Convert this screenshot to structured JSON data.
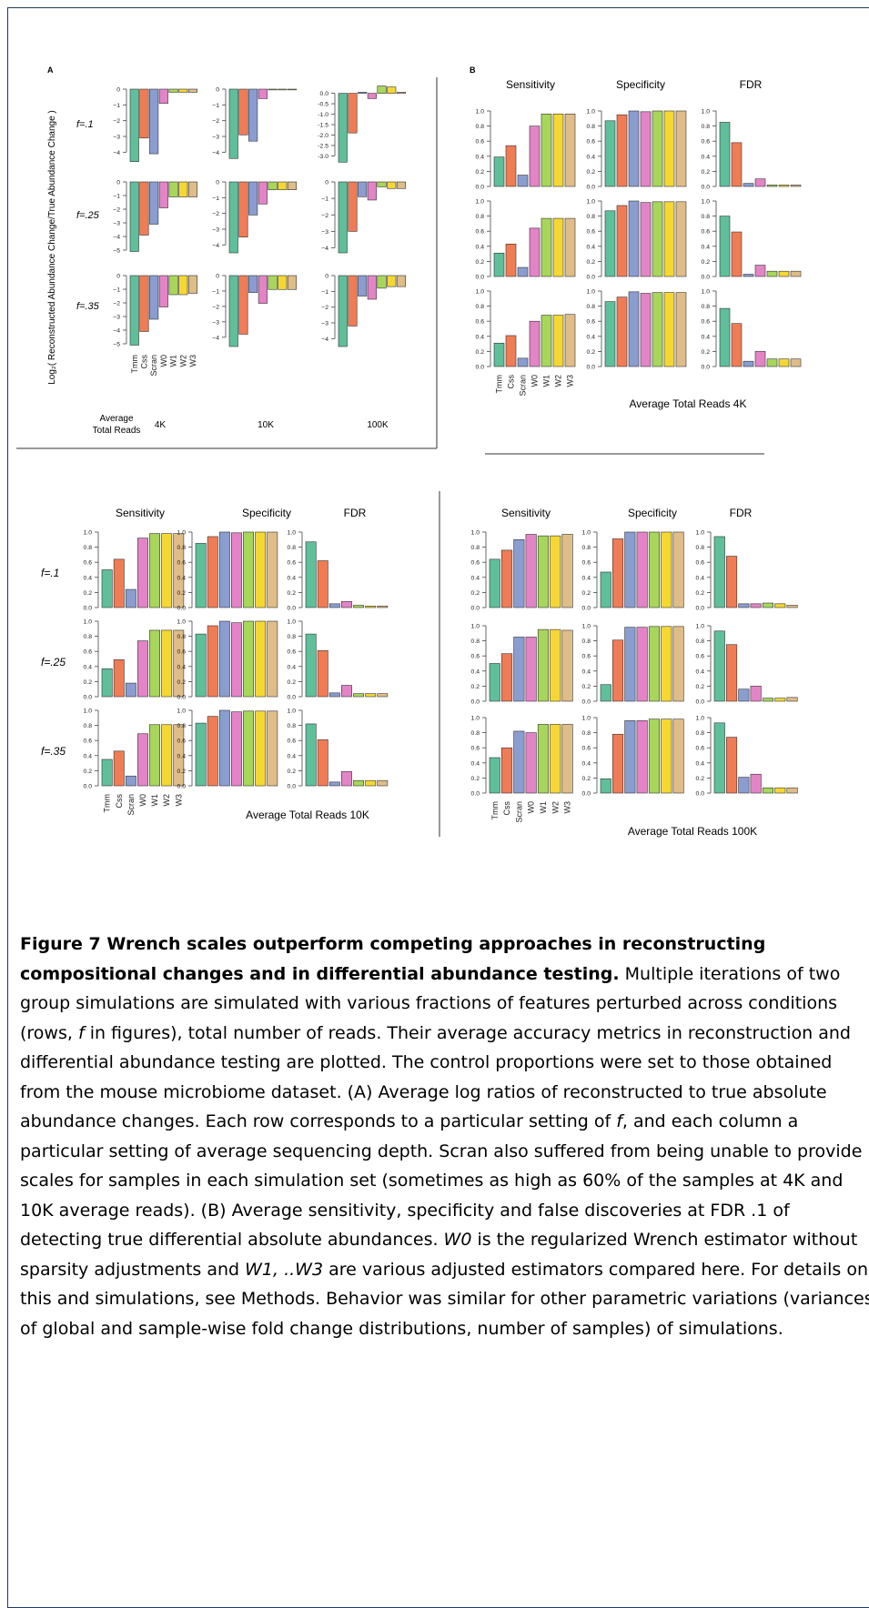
{
  "colors": {
    "Tmm": "#5fbf9b",
    "Css": "#f07c55",
    "Scran": "#8a9dd0",
    "W0": "#e384c7",
    "W1": "#a7d65b",
    "W2": "#f5d733",
    "W3": "#dfbd88",
    "frame": "#1f3a66"
  },
  "methods": [
    "Tmm",
    "Css",
    "Scran",
    "W0",
    "W1",
    "W2",
    "W3"
  ],
  "metrics": [
    "Sensitivity",
    "Specificity",
    "FDR"
  ],
  "panel_labels": {
    "a": "A",
    "b": "B"
  },
  "f_rows": [
    "f=.1",
    "f=.25",
    "f=.35"
  ],
  "panel_a": {
    "ylabel": "Log₂( Reconstructed Abundance Change/True Abundance Change )",
    "xlabel_line1": "Average",
    "xlabel_line2": "Total Reads",
    "depths": [
      "4K",
      "10K",
      "100K"
    ]
  },
  "subfig_titles": {
    "b4k": "Average Total Reads 4K",
    "b10k": "Average Total Reads 10K",
    "b100k": "Average Total Reads 100K"
  },
  "chart_data": [
    {
      "type": "bar",
      "panel": "A",
      "ylabel": "Log₂( Reconstructed Abundance Change/True Abundance Change )",
      "categories": [
        "Tmm",
        "Css",
        "Scran",
        "W0",
        "W1",
        "W2",
        "W3"
      ],
      "grid": [
        {
          "f": ".1",
          "depth": "4K",
          "ylim": [
            -4.5,
            0
          ],
          "ticks": [
            0,
            -1,
            -2,
            -3,
            -4
          ],
          "values": [
            -4.6,
            -3.1,
            -4.1,
            -0.9,
            -0.2,
            -0.2,
            -0.2
          ]
        },
        {
          "f": ".1",
          "depth": "10K",
          "ylim": [
            -4.5,
            0
          ],
          "ticks": [
            0,
            -1,
            -2,
            -3,
            -4
          ],
          "values": [
            -4.4,
            -2.9,
            -3.3,
            -0.6,
            -0.05,
            -0.05,
            -0.05
          ]
        },
        {
          "f": ".1",
          "depth": "100K",
          "ylim": [
            -3.2,
            0.2
          ],
          "ticks": [
            0.0,
            -0.5,
            -1.0,
            -1.5,
            -2.0,
            -2.5,
            -3.0
          ],
          "values": [
            -3.3,
            -1.9,
            0.05,
            -0.25,
            0.35,
            0.3,
            0.05
          ]
        },
        {
          "f": ".25",
          "depth": "4K",
          "ylim": [
            -5.2,
            0
          ],
          "ticks": [
            0,
            -1,
            -2,
            -3,
            -4,
            -5
          ],
          "values": [
            -5.1,
            -3.9,
            -3.1,
            -1.9,
            -1.1,
            -1.1,
            -1.1
          ]
        },
        {
          "f": ".25",
          "depth": "10K",
          "ylim": [
            -4.5,
            0
          ],
          "ticks": [
            0,
            -1,
            -2,
            -3,
            -4
          ],
          "values": [
            -4.5,
            -3.5,
            -2.1,
            -1.4,
            -0.5,
            -0.5,
            -0.5
          ]
        },
        {
          "f": ".25",
          "depth": "100K",
          "ylim": [
            -4.3,
            0
          ],
          "ticks": [
            0,
            -1,
            -2,
            -3,
            -4
          ],
          "values": [
            -4.3,
            -3.0,
            -0.9,
            -1.1,
            -0.3,
            -0.4,
            -0.4
          ]
        },
        {
          "f": ".35",
          "depth": "4K",
          "ylim": [
            -5.2,
            0
          ],
          "ticks": [
            0,
            -1,
            -2,
            -3,
            -4,
            -5
          ],
          "values": [
            -5.1,
            -4.1,
            -3.2,
            -2.3,
            -1.4,
            -1.4,
            -1.3
          ]
        },
        {
          "f": ".35",
          "depth": "10K",
          "ylim": [
            -4.6,
            0
          ],
          "ticks": [
            0,
            -1,
            -2,
            -3,
            -4
          ],
          "values": [
            -4.6,
            -3.8,
            -1.1,
            -1.8,
            -0.9,
            -0.9,
            -0.9
          ]
        },
        {
          "f": ".35",
          "depth": "100K",
          "ylim": [
            -4.5,
            0
          ],
          "ticks": [
            0,
            -1,
            -2,
            -3,
            -4
          ],
          "values": [
            -4.5,
            -3.2,
            -1.3,
            -1.5,
            -0.8,
            -0.7,
            -0.7
          ]
        }
      ]
    },
    {
      "type": "bar",
      "panel": "B",
      "depth": "4K",
      "title": "Average Total Reads 4K",
      "categories": [
        "Tmm",
        "Css",
        "Scran",
        "W0",
        "W1",
        "W2",
        "W3"
      ],
      "ylim": [
        0,
        1
      ],
      "metrics": {
        "Sensitivity": [
          [
            0.39,
            0.54,
            0.15,
            0.8,
            0.96,
            0.96,
            0.96
          ],
          [
            0.31,
            0.43,
            0.12,
            0.64,
            0.77,
            0.77,
            0.77
          ],
          [
            0.31,
            0.41,
            0.11,
            0.6,
            0.68,
            0.68,
            0.69
          ]
        ],
        "Specificity": [
          [
            0.87,
            0.95,
            1.0,
            0.99,
            1.0,
            1.0,
            1.0
          ],
          [
            0.87,
            0.94,
            1.0,
            0.98,
            0.99,
            0.99,
            0.99
          ],
          [
            0.86,
            0.92,
            0.99,
            0.97,
            0.98,
            0.98,
            0.98
          ]
        ],
        "FDR": [
          [
            0.85,
            0.58,
            0.04,
            0.1,
            0.02,
            0.02,
            0.02
          ],
          [
            0.8,
            0.59,
            0.03,
            0.15,
            0.07,
            0.07,
            0.07
          ],
          [
            0.77,
            0.57,
            0.07,
            0.2,
            0.1,
            0.1,
            0.1
          ]
        ]
      }
    },
    {
      "type": "bar",
      "panel": "B",
      "depth": "10K",
      "title": "Average Total Reads 10K",
      "categories": [
        "Tmm",
        "Css",
        "Scran",
        "W0",
        "W1",
        "W2",
        "W3"
      ],
      "ylim": [
        0,
        1
      ],
      "metrics": {
        "Sensitivity": [
          [
            0.5,
            0.64,
            0.24,
            0.92,
            0.98,
            0.98,
            0.98
          ],
          [
            0.37,
            0.49,
            0.18,
            0.74,
            0.88,
            0.88,
            0.88
          ],
          [
            0.35,
            0.46,
            0.13,
            0.69,
            0.81,
            0.81,
            0.81
          ]
        ],
        "Specificity": [
          [
            0.85,
            0.94,
            1.0,
            0.99,
            1.0,
            1.0,
            1.0
          ],
          [
            0.83,
            0.94,
            1.0,
            0.98,
            1.0,
            1.0,
            1.0
          ],
          [
            0.83,
            0.92,
            1.0,
            0.98,
            0.99,
            0.99,
            0.99
          ]
        ],
        "FDR": [
          [
            0.87,
            0.62,
            0.05,
            0.08,
            0.03,
            0.02,
            0.02
          ],
          [
            0.83,
            0.61,
            0.05,
            0.15,
            0.04,
            0.04,
            0.04
          ],
          [
            0.82,
            0.61,
            0.05,
            0.19,
            0.07,
            0.07,
            0.07
          ]
        ]
      }
    },
    {
      "type": "bar",
      "panel": "B",
      "depth": "100K",
      "title": "Average Total Reads 100K",
      "categories": [
        "Tmm",
        "Css",
        "Scran",
        "W0",
        "W1",
        "W2",
        "W3"
      ],
      "ylim": [
        0,
        1
      ],
      "metrics": {
        "Sensitivity": [
          [
            0.64,
            0.76,
            0.9,
            0.97,
            0.95,
            0.95,
            0.97
          ],
          [
            0.5,
            0.63,
            0.85,
            0.85,
            0.95,
            0.95,
            0.94
          ],
          [
            0.47,
            0.6,
            0.82,
            0.8,
            0.91,
            0.91,
            0.91
          ]
        ],
        "Specificity": [
          [
            0.47,
            0.91,
            1.0,
            1.0,
            1.0,
            1.0,
            1.0
          ],
          [
            0.22,
            0.81,
            0.98,
            0.98,
            0.99,
            0.99,
            0.99
          ],
          [
            0.19,
            0.78,
            0.96,
            0.96,
            0.98,
            0.98,
            0.98
          ]
        ],
        "FDR": [
          [
            0.94,
            0.68,
            0.05,
            0.05,
            0.06,
            0.05,
            0.03
          ],
          [
            0.93,
            0.75,
            0.16,
            0.2,
            0.04,
            0.04,
            0.05
          ],
          [
            0.93,
            0.74,
            0.21,
            0.25,
            0.07,
            0.07,
            0.07
          ]
        ]
      }
    }
  ],
  "caption": {
    "title": "Figure 7 Wrench scales outperform competing approaches in reconstructing compositional changes and in differential abundance testing.",
    "body_1": "Multiple iterations of two group simulations are simulated with various fractions of features perturbed across conditions (rows, ",
    "f_symbol": "f",
    "body_2": " in figures), total number of reads. Their average accuracy metrics in reconstruction and differential abundance testing are plotted. The control proportions were set to those obtained from the mouse microbiome dataset. (A) Average log ratios of reconstructed to true absolute abundance changes. Each row corresponds to a particular setting of ",
    "body_3": ", and each column a particular setting of average sequencing depth. Scran also suffered from being unable to provide scales for samples in each simulation set (sometimes as high as 60% of the samples at 4K and 10K average reads). (B) Average sensitivity, specificity and false discoveries at FDR .1 of detecting true differential absolute abundances. ",
    "w0_symbol": "W0",
    "body_4": " is the regularized Wrench estimator without sparsity adjustments and ",
    "w13_symbol": "W1, ..W3",
    "body_5": " are various adjusted estimators compared here. For details on this and simulations, see Methods. Behavior was similar for other parametric variations (variances of global and sample-wise fold change distributions, number of samples) of simulations."
  }
}
